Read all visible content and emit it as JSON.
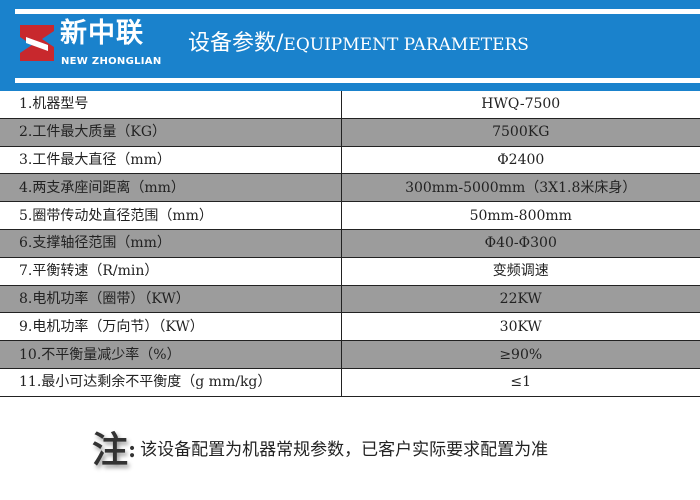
{
  "header": {
    "logo_cn": "新中联",
    "logo_en": "NEW ZHONGLIAN",
    "title_cn": "设备参数/",
    "title_en": "EQUIPMENT PARAMETERS",
    "background": "#1a82cc",
    "logo_color": "#c8282d"
  },
  "table": {
    "rows": [
      {
        "label": "1.机器型号",
        "value": "HWQ-7500"
      },
      {
        "label": "2.工件最大质量（KG）",
        "value": "7500KG"
      },
      {
        "label": "3.工件最大直径（mm）",
        "value": "Φ2400"
      },
      {
        "label": "4.两支承座间距离（mm）",
        "value": "300mm-5000mm（3X1.8米床身）"
      },
      {
        "label": "5.圈带传动处直径范围（mm）",
        "value": "50mm-800mm"
      },
      {
        "label": "6.支撑轴径范围（mm）",
        "value": "Φ40-Φ300"
      },
      {
        "label": "7.平衡转速（R/min）",
        "value": "变频调速"
      },
      {
        "label": "8.电机功率（圈带）（KW）",
        "value": "22KW"
      },
      {
        "label": "9.电机功率（万向节）（KW）",
        "value": "30KW"
      },
      {
        "label": "10.不平衡量减少率（%）",
        "value": "≥90%"
      },
      {
        "label": "11.最小可达剩余不平衡度（g mm/kg）",
        "value": "≤1"
      }
    ]
  },
  "note": {
    "mark": "注",
    "colon": ":",
    "text": "该设备配置为机器常规参数，已客户实际要求配置为准"
  }
}
